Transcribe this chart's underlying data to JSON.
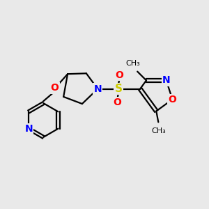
{
  "bg_color": "#e9e9e9",
  "bond_color": "#000000",
  "bond_width": 1.6,
  "atom_colors": {
    "N": "#0000ff",
    "O": "#ff0000",
    "S": "#cccc00",
    "C": "#000000"
  },
  "font_size": 9,
  "figsize": [
    3.0,
    3.0
  ],
  "dpi": 100
}
